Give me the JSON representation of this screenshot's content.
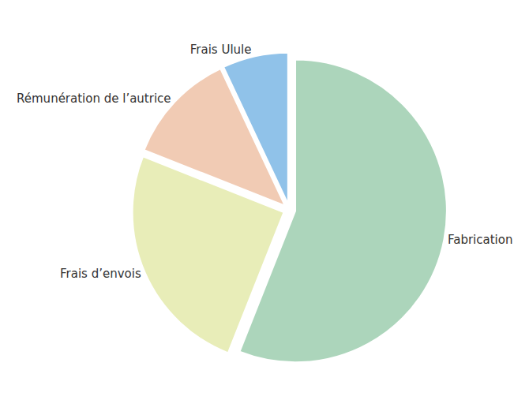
{
  "chart_data": {
    "type": "pie",
    "categories": [
      "Fabrication",
      "Frais d’envois",
      "Rémunération de l’autrice",
      "Frais Ulule"
    ],
    "values": [
      56,
      25,
      12,
      7
    ],
    "colors": [
      "#acd5bb",
      "#e8edb8",
      "#f1cbb4",
      "#90c2e9"
    ],
    "data_labels": false
  }
}
